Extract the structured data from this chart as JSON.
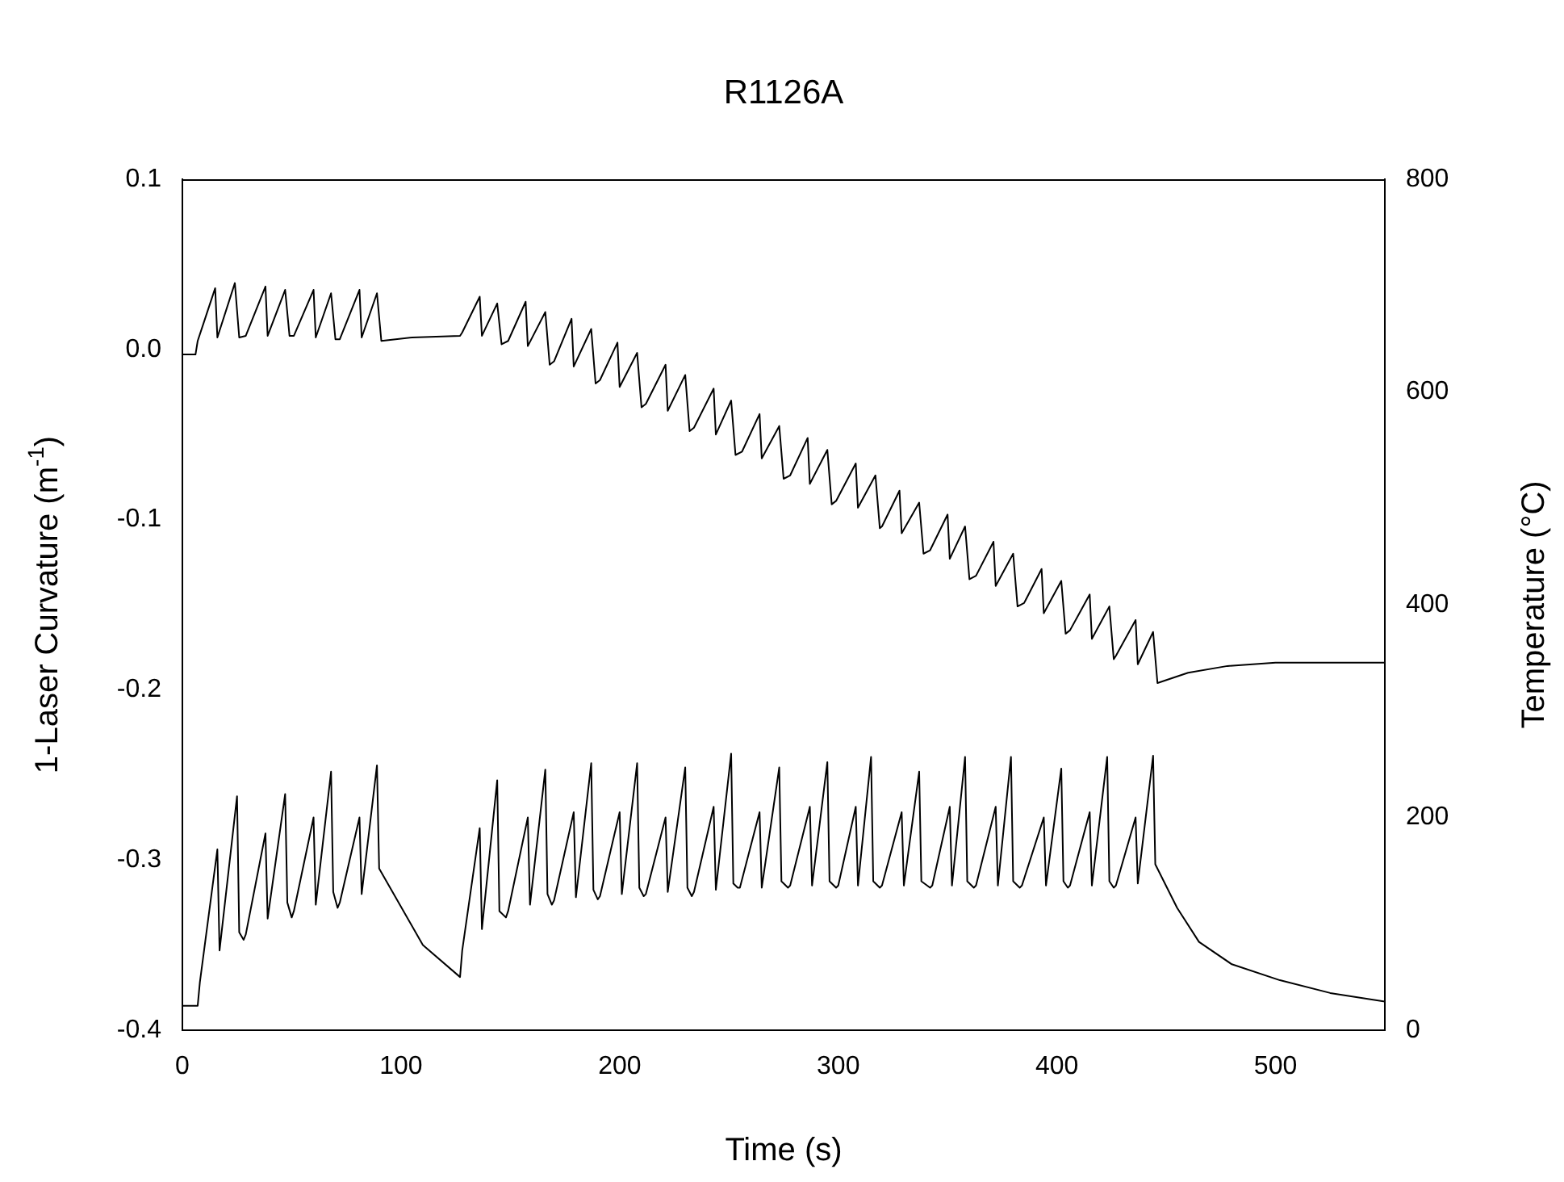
{
  "chart_data": {
    "type": "line",
    "title": "R1126A",
    "xlabel": "Time (s)",
    "ylabel": "1-Laser Curvature (m$^{-1}$)",
    "y2label": "Temperature (°C)",
    "xlim": [
      0,
      550
    ],
    "xticks": [
      0,
      100,
      200,
      300,
      400,
      500
    ],
    "ylim": [
      -0.4,
      0.1
    ],
    "yticks": [
      -0.4,
      -0.3,
      -0.2,
      -0.1,
      {
        "value": 0,
        "label": "0.0"
      },
      0.1
    ],
    "y2lim": [
      0,
      800
    ],
    "y2ticks": [
      0,
      200,
      400,
      600,
      800
    ],
    "marker": "none",
    "line_style": "solid",
    "series": [
      {
        "type": "line",
        "color": "#000000",
        "x": [
          0,
          6,
          7,
          15,
          16,
          24,
          26,
          29,
          38,
          39,
          47,
          49,
          51,
          60,
          61,
          68,
          70,
          72,
          81,
          82,
          89,
          91,
          105,
          127,
          128,
          136,
          137,
          144,
          146,
          149,
          157,
          158,
          166,
          168,
          170,
          178,
          179,
          187,
          189,
          191,
          199,
          200,
          208,
          210,
          212,
          221,
          222,
          230,
          232,
          234,
          243,
          244,
          251,
          253,
          256,
          264,
          265,
          273,
          275,
          278,
          286,
          287,
          295,
          297,
          299,
          308,
          309,
          317,
          319,
          320,
          328,
          329,
          337,
          339,
          342,
          350,
          351,
          358,
          360,
          363,
          371,
          372,
          380,
          382,
          385,
          393,
          394,
          402,
          404,
          406,
          415,
          416,
          424,
          426,
          427,
          436,
          437,
          444,
          446,
          460,
          478,
          500,
          550
        ],
        "values": [
          -0.003,
          -0.003,
          0.005,
          0.036,
          0.007,
          0.039,
          0.007,
          0.008,
          0.037,
          0.008,
          0.035,
          0.008,
          0.008,
          0.035,
          0.007,
          0.033,
          0.006,
          0.006,
          0.035,
          0.007,
          0.033,
          0.005,
          0.007,
          0.008,
          0.01,
          0.031,
          0.008,
          0.027,
          0.003,
          0.005,
          0.028,
          0.002,
          0.022,
          -0.009,
          -0.007,
          0.018,
          -0.01,
          0.012,
          -0.02,
          -0.018,
          0.004,
          -0.022,
          -0.002,
          -0.034,
          -0.032,
          -0.009,
          -0.036,
          -0.015,
          -0.048,
          -0.046,
          -0.023,
          -0.05,
          -0.03,
          -0.062,
          -0.06,
          -0.038,
          -0.064,
          -0.045,
          -0.076,
          -0.074,
          -0.052,
          -0.079,
          -0.059,
          -0.091,
          -0.089,
          -0.067,
          -0.093,
          -0.074,
          -0.105,
          -0.104,
          -0.083,
          -0.108,
          -0.09,
          -0.12,
          -0.118,
          -0.097,
          -0.123,
          -0.104,
          -0.135,
          -0.133,
          -0.113,
          -0.139,
          -0.12,
          -0.151,
          -0.149,
          -0.129,
          -0.155,
          -0.136,
          -0.167,
          -0.165,
          -0.144,
          -0.17,
          -0.151,
          -0.182,
          -0.18,
          -0.159,
          -0.185,
          -0.166,
          -0.196,
          -0.19,
          -0.186,
          -0.184,
          -0.184
        ]
      },
      {
        "type": "line",
        "color": "#000000",
        "axis": "y2",
        "x": [
          0,
          7,
          8,
          16,
          17,
          25,
          26,
          28,
          29,
          38,
          39,
          47,
          48,
          50,
          51,
          60,
          61,
          68,
          69,
          71,
          72,
          81,
          82,
          89,
          90,
          110,
          127,
          128,
          136,
          137,
          144,
          145,
          148,
          149,
          158,
          159,
          166,
          167,
          169,
          170,
          179,
          180,
          187,
          188,
          190,
          191,
          200,
          201,
          208,
          209,
          211,
          212,
          221,
          222,
          230,
          231,
          233,
          234,
          243,
          244,
          251,
          252,
          254,
          255,
          264,
          265,
          273,
          274,
          277,
          278,
          287,
          288,
          295,
          296,
          299,
          300,
          308,
          309,
          315,
          316,
          319,
          320,
          329,
          330,
          337,
          338,
          342,
          343,
          351,
          352,
          358,
          359,
          362,
          363,
          372,
          373,
          379,
          380,
          383,
          384,
          394,
          395,
          402,
          403,
          405,
          406,
          415,
          416,
          423,
          424,
          426,
          427,
          436,
          437,
          444,
          445,
          455,
          465,
          480,
          502,
          525,
          550
        ],
        "values": [
          23,
          23,
          45,
          170,
          75,
          220,
          92,
          85,
          90,
          185,
          105,
          222,
          120,
          106,
          112,
          200,
          118,
          243,
          130,
          115,
          120,
          200,
          128,
          249,
          152,
          80,
          50,
          75,
          190,
          95,
          235,
          112,
          106,
          112,
          200,
          118,
          245,
          128,
          118,
          122,
          205,
          125,
          251,
          132,
          123,
          126,
          205,
          128,
          251,
          134,
          126,
          128,
          200,
          130,
          247,
          134,
          126,
          130,
          210,
          132,
          260,
          138,
          134,
          134,
          205,
          134,
          247,
          140,
          134,
          136,
          210,
          136,
          252,
          140,
          134,
          136,
          210,
          136,
          257,
          140,
          134,
          136,
          205,
          136,
          243,
          140,
          134,
          136,
          210,
          136,
          257,
          140,
          134,
          136,
          210,
          136,
          257,
          140,
          134,
          136,
          200,
          136,
          246,
          140,
          134,
          136,
          205,
          136,
          257,
          140,
          134,
          136,
          200,
          138,
          258,
          156,
          115,
          83,
          62,
          47,
          35,
          27
        ]
      }
    ]
  }
}
